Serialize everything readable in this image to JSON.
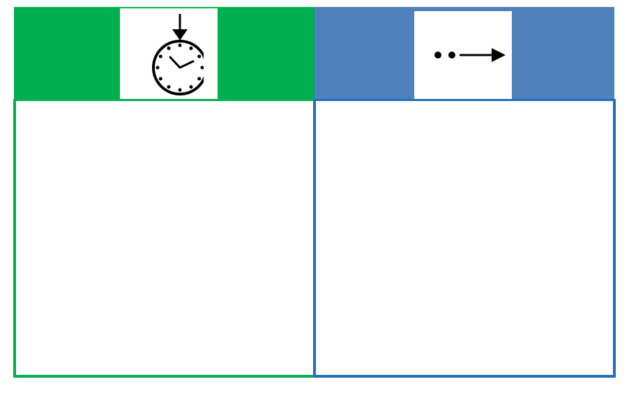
{
  "colors": {
    "left_header": "#00b050",
    "left_border": "#00b050",
    "right_header": "#4f81bd",
    "right_border": "#1f6fbf"
  },
  "icons": {
    "left": "stopwatch-arrow-down-icon",
    "right": "dots-arrow-right-icon"
  }
}
